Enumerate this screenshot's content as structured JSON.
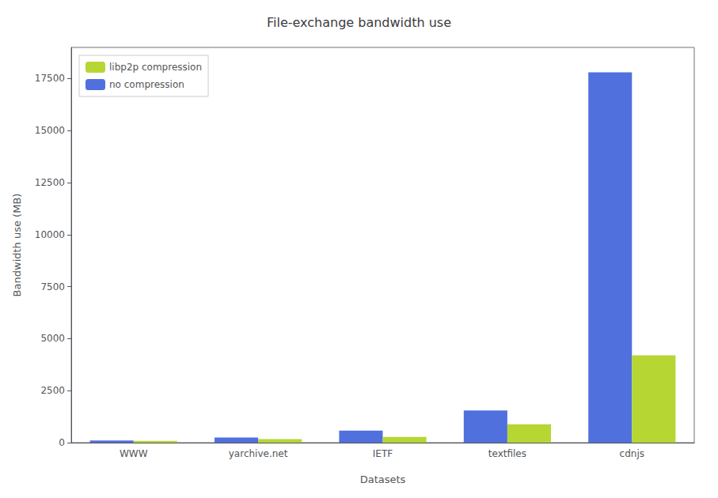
{
  "chart_data": {
    "type": "bar",
    "title": "File-exchange bandwidth use",
    "xlabel": "Datasets",
    "ylabel": "Bandwidth use (MB)",
    "categories": [
      "WWW",
      "yarchive.net",
      "IETF",
      "textfiles",
      "cdnjs"
    ],
    "series": [
      {
        "name": "no compression",
        "values": [
          100,
          250,
          580,
          1550,
          17800
        ]
      },
      {
        "name": "libp2p compression",
        "values": [
          90,
          170,
          280,
          880,
          4200
        ]
      }
    ],
    "ylim": [
      0,
      19000
    ],
    "yticks": [
      0,
      2500,
      5000,
      7500,
      10000,
      12500,
      15000,
      17500
    ],
    "legend": "upper left",
    "grid": false
  }
}
